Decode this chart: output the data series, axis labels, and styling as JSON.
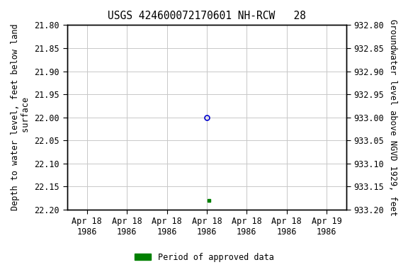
{
  "title": "USGS 424600072170601 NH-RCW   28",
  "ylabel_left": "Depth to water level, feet below land\n surface",
  "ylabel_right": "Groundwater level above NGVD 1929, feet",
  "ylim_left": [
    21.8,
    22.2
  ],
  "ylim_right": [
    932.8,
    933.2
  ],
  "yticks_left": [
    21.8,
    21.85,
    21.9,
    21.95,
    22.0,
    22.05,
    22.1,
    22.15,
    22.2
  ],
  "yticks_right": [
    933.2,
    933.15,
    933.1,
    933.05,
    933.0,
    932.95,
    932.9,
    932.85,
    932.8
  ],
  "xtick_labels": [
    "Apr 18\n1986",
    "Apr 18\n1986",
    "Apr 18\n1986",
    "Apr 18\n1986",
    "Apr 18\n1986",
    "Apr 18\n1986",
    "Apr 19\n1986"
  ],
  "xtick_positions": [
    0,
    1,
    2,
    3,
    4,
    5,
    6
  ],
  "xlim": [
    -0.5,
    6.5
  ],
  "point_open_x": 3.0,
  "point_open_y": 22.0,
  "point_filled_x": 3.05,
  "point_filled_y": 22.18,
  "open_marker_color": "#0000cc",
  "filled_marker_color": "#008000",
  "legend_label": "Period of approved data",
  "legend_color": "#008000",
  "background_color": "#ffffff",
  "grid_color": "#c8c8c8",
  "title_fontsize": 10.5,
  "axis_fontsize": 8.5,
  "tick_fontsize": 8.5
}
